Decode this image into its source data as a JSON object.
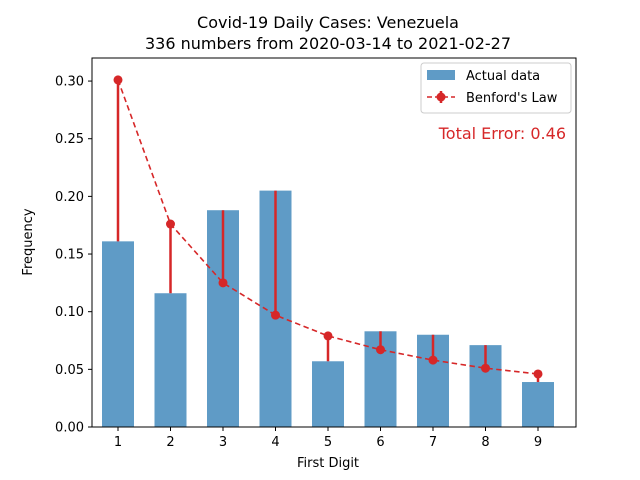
{
  "chart_data": {
    "type": "bar",
    "title": "Covid-19 Daily Cases: Venezuela",
    "subtitle": "336 numbers from 2020-03-14 to 2021-02-27",
    "xlabel": "First Digit",
    "ylabel": "Frequency",
    "categories": [
      "1",
      "2",
      "3",
      "4",
      "5",
      "6",
      "7",
      "8",
      "9"
    ],
    "ylim": [
      0,
      0.32
    ],
    "yticks": [
      "0.00",
      "0.05",
      "0.10",
      "0.15",
      "0.20",
      "0.25",
      "0.30"
    ],
    "grid": false,
    "legend_position": "top-right",
    "series": [
      {
        "name": "Actual data",
        "type": "bar",
        "color": "#5f9bc6",
        "values": [
          0.161,
          0.116,
          0.188,
          0.205,
          0.057,
          0.083,
          0.08,
          0.071,
          0.039
        ]
      },
      {
        "name": "Benford's Law",
        "type": "line",
        "style": "dashed",
        "marker": "circle",
        "color": "#d62728",
        "values": [
          0.301,
          0.176,
          0.125,
          0.097,
          0.079,
          0.067,
          0.058,
          0.051,
          0.046
        ]
      }
    ],
    "annotation": {
      "text": "Total Error: 0.46",
      "color": "#d62728"
    }
  }
}
